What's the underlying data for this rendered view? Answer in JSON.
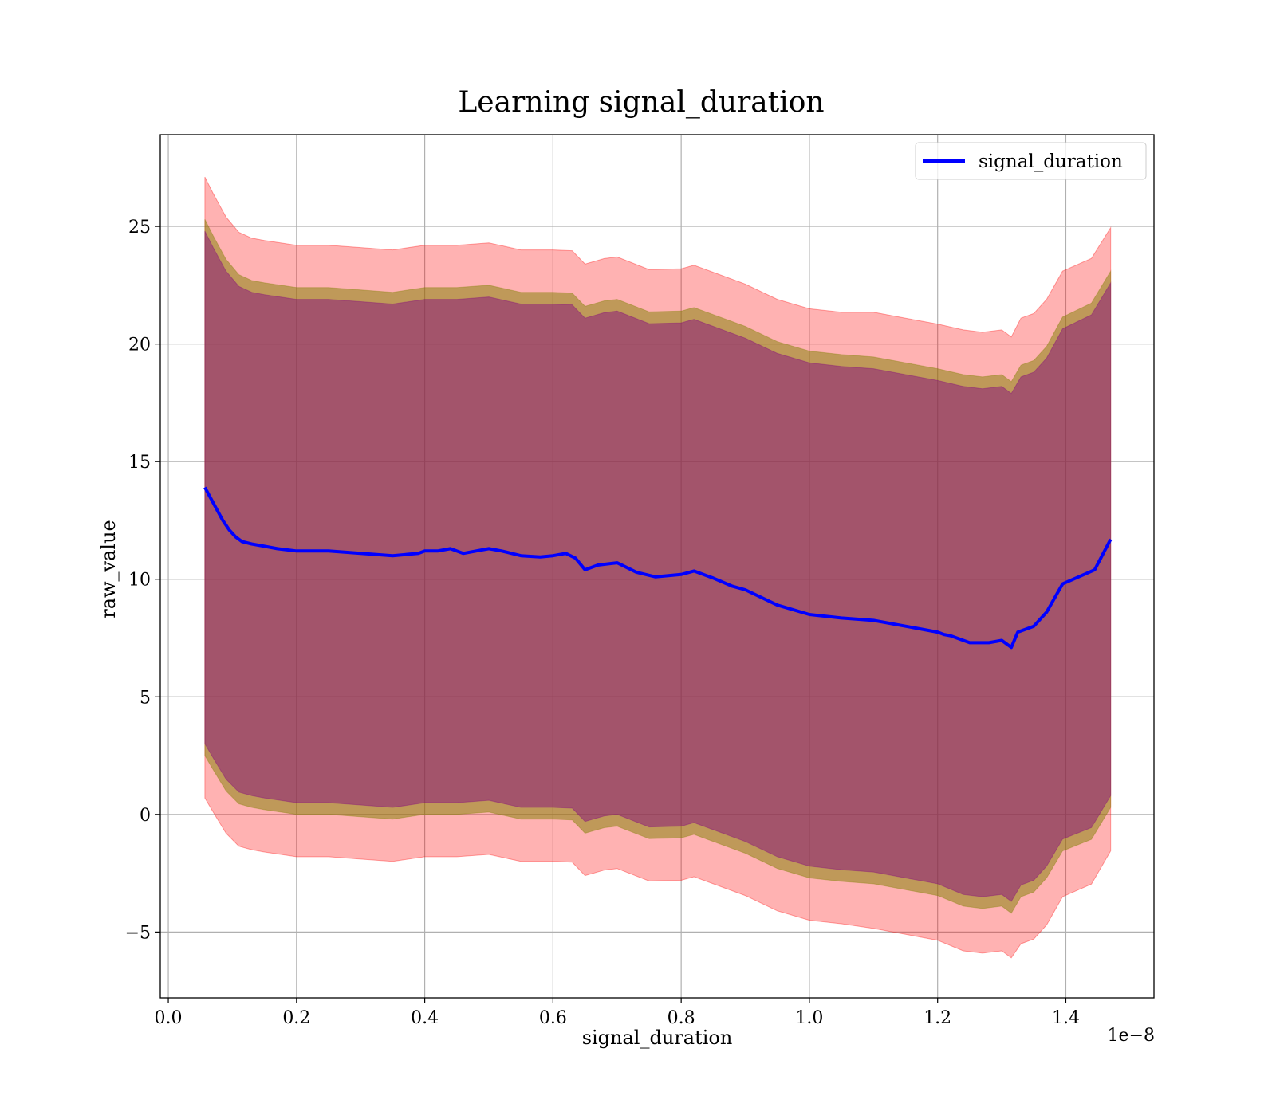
{
  "chart_data": {
    "type": "line",
    "title": "Learning signal_duration",
    "xlabel": "signal_duration",
    "ylabel": "raw_value",
    "x_offset_label": "1e−8",
    "xlim": [
      -0.0125,
      1.5375
    ],
    "ylim": [
      -7.8,
      28.9
    ],
    "x_ticks": [
      0.0,
      0.2,
      0.4,
      0.6,
      0.8,
      1.0,
      1.2,
      1.4
    ],
    "x_tick_labels": [
      "0.0",
      "0.2",
      "0.4",
      "0.6",
      "0.8",
      "1.0",
      "1.2",
      "1.4"
    ],
    "y_ticks": [
      -5,
      0,
      5,
      10,
      15,
      20,
      25
    ],
    "y_tick_labels": [
      "−5",
      "0",
      "5",
      "10",
      "15",
      "20",
      "25"
    ],
    "grid": true,
    "legend_position": "top-right",
    "colors": {
      "line": "#0000ff",
      "outer_band": "#ff0000",
      "middle_band": "#808000",
      "inner_band": "#800080",
      "grid": "#b0b0b0"
    },
    "series": [
      {
        "name": "signal_duration",
        "x": [
          0.057,
          0.065,
          0.075,
          0.085,
          0.095,
          0.105,
          0.115,
          0.13,
          0.15,
          0.17,
          0.2,
          0.25,
          0.3,
          0.35,
          0.39,
          0.4,
          0.42,
          0.44,
          0.46,
          0.48,
          0.5,
          0.52,
          0.55,
          0.58,
          0.6,
          0.62,
          0.635,
          0.65,
          0.67,
          0.7,
          0.73,
          0.76,
          0.8,
          0.82,
          0.85,
          0.88,
          0.9,
          0.95,
          1.0,
          1.05,
          1.1,
          1.15,
          1.2,
          1.21,
          1.22,
          1.25,
          1.28,
          1.3,
          1.315,
          1.325,
          1.35,
          1.37,
          1.395,
          1.42,
          1.445,
          1.47
        ],
        "y": [
          13.9,
          13.5,
          13.0,
          12.5,
          12.1,
          11.8,
          11.6,
          11.5,
          11.4,
          11.3,
          11.2,
          11.2,
          11.1,
          11.0,
          11.1,
          11.2,
          11.2,
          11.3,
          11.1,
          11.2,
          11.3,
          11.2,
          11.0,
          10.95,
          11.0,
          11.1,
          10.9,
          10.4,
          10.6,
          10.7,
          10.3,
          10.1,
          10.2,
          10.35,
          10.05,
          9.7,
          9.55,
          8.9,
          8.5,
          8.35,
          8.25,
          8.0,
          7.75,
          7.65,
          7.6,
          7.3,
          7.3,
          7.4,
          7.1,
          7.75,
          8.0,
          8.6,
          9.8,
          10.1,
          10.4,
          11.7
        ]
      }
    ],
    "band_x": [
      0.057,
      0.07,
      0.09,
      0.11,
      0.13,
      0.15,
      0.2,
      0.25,
      0.3,
      0.35,
      0.4,
      0.45,
      0.5,
      0.55,
      0.6,
      0.63,
      0.65,
      0.68,
      0.7,
      0.75,
      0.8,
      0.82,
      0.85,
      0.9,
      0.95,
      1.0,
      1.05,
      1.1,
      1.15,
      1.2,
      1.24,
      1.27,
      1.3,
      1.315,
      1.33,
      1.35,
      1.37,
      1.395,
      1.44,
      1.47
    ],
    "bands": [
      {
        "label": "outer",
        "offset": [
          13.2,
          13.15,
          13.1,
          13.05,
          13.0,
          13.0,
          13.0,
          13.0,
          13.0,
          13.0,
          13.0,
          13.0,
          13.0,
          13.0,
          13.0,
          13.0,
          13.0,
          13.0,
          13.0,
          13.0,
          13.0,
          13.0,
          13.0,
          13.0,
          13.0,
          13.0,
          13.0,
          13.1,
          13.1,
          13.1,
          13.2,
          13.2,
          13.2,
          13.2,
          13.3,
          13.3,
          13.3,
          13.3,
          13.3,
          13.25
        ]
      },
      {
        "label": "middle",
        "offset": [
          11.4,
          11.35,
          11.3,
          11.25,
          11.2,
          11.2,
          11.2,
          11.2,
          11.2,
          11.2,
          11.2,
          11.2,
          11.2,
          11.2,
          11.2,
          11.2,
          11.2,
          11.2,
          11.2,
          11.2,
          11.2,
          11.2,
          11.2,
          11.2,
          11.2,
          11.2,
          11.2,
          11.2,
          11.2,
          11.2,
          11.3,
          11.3,
          11.3,
          11.3,
          11.3,
          11.3,
          11.3,
          11.35,
          11.4,
          11.4
        ]
      },
      {
        "label": "inner",
        "offset": [
          10.9,
          10.85,
          10.8,
          10.75,
          10.7,
          10.7,
          10.7,
          10.7,
          10.7,
          10.7,
          10.7,
          10.7,
          10.7,
          10.7,
          10.7,
          10.7,
          10.7,
          10.7,
          10.7,
          10.7,
          10.7,
          10.7,
          10.7,
          10.7,
          10.7,
          10.7,
          10.7,
          10.7,
          10.7,
          10.7,
          10.8,
          10.8,
          10.8,
          10.8,
          10.8,
          10.8,
          10.8,
          10.85,
          10.9,
          10.9
        ]
      }
    ]
  }
}
